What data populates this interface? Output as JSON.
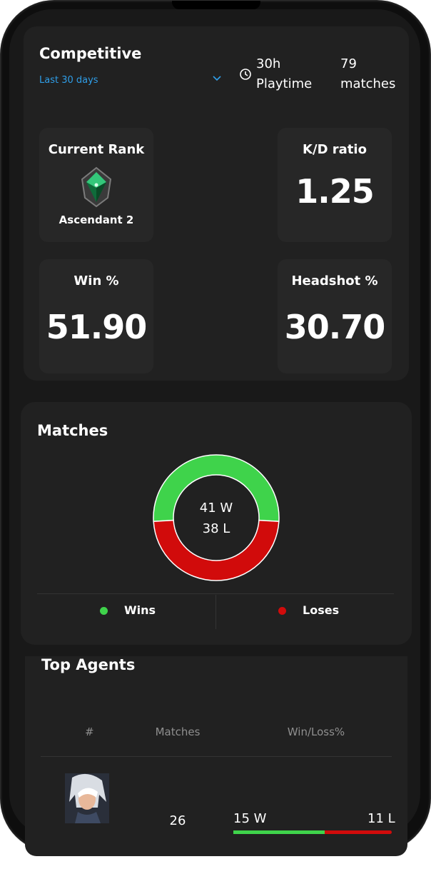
{
  "header": {
    "title": "Competitive",
    "period": "Last 30 days",
    "playtime_value": "30h",
    "playtime_label": "Playtime",
    "matches_value": "79",
    "matches_label": "matches"
  },
  "stats": {
    "rank": {
      "label": "Current Rank",
      "value": "Ascendant 2"
    },
    "kd": {
      "label": "K/D ratio",
      "value": "1.25"
    },
    "win": {
      "label": "Win %",
      "value": "51.90"
    },
    "headshot": {
      "label": "Headshot %",
      "value": "30.70"
    }
  },
  "matches_card": {
    "title": "Matches",
    "wins_text": "41 W",
    "losses_text": "38 L",
    "wins": 41,
    "losses": 38,
    "legend_wins": "Wins",
    "legend_loses": "Loses",
    "win_color": "#3fd34b",
    "loss_color": "#d10b0b"
  },
  "top_agents": {
    "title": "Top Agents",
    "columns": [
      "#",
      "Matches",
      "Win/Loss%"
    ],
    "rows": [
      {
        "matches": "26",
        "wins_text": "15 W",
        "losses_text": "11 L",
        "wins": 15,
        "losses": 11
      }
    ]
  }
}
